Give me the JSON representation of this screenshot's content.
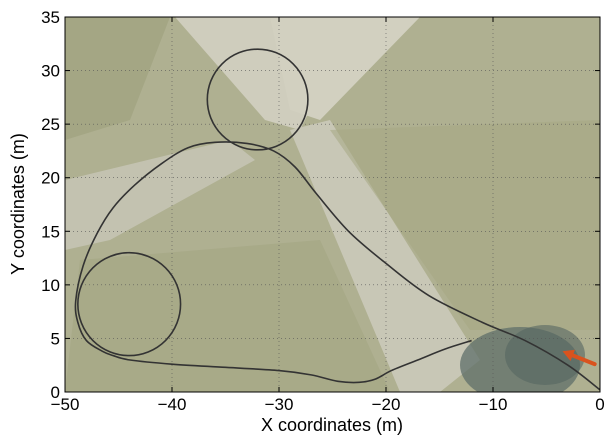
{
  "chart_data": {
    "type": "line",
    "title": "",
    "xlabel": "X coordinates (m)",
    "ylabel": "Y coordinates (m)",
    "xlim": [
      -50,
      0
    ],
    "ylim": [
      0,
      35
    ],
    "xticks": [
      -50,
      -40,
      -30,
      -20,
      -10,
      0
    ],
    "yticks": [
      0,
      5,
      10,
      15,
      20,
      25,
      30,
      35
    ],
    "xtick_labels": [
      "−50",
      "−40",
      "−30",
      "−20",
      "−10",
      "0"
    ],
    "ytick_labels": [
      "0",
      "5",
      "10",
      "15",
      "20",
      "25",
      "30",
      "35"
    ],
    "grid": true,
    "background": "aerial photograph (green field with pale footpaths)",
    "line_color": "#333333",
    "arrow_color": "#d9531e",
    "series": [
      {
        "name": "",
        "x": [
          0,
          -3,
          -7,
          -11,
          -16,
          -20,
          -23.5,
          -26.5,
          -28.5,
          -30.5,
          -33,
          -36,
          -38.5,
          -41,
          -43.5,
          -45.5,
          -47,
          -48.3,
          -49,
          -48.8,
          -48,
          -46.5,
          -45.5,
          -44,
          -40,
          -35,
          -30,
          -27,
          -24.5,
          -22.5,
          -21,
          -19.5,
          -17,
          -14.5,
          -12
        ],
        "y": [
          0.2,
          2.5,
          4.8,
          6.5,
          9.0,
          12.0,
          15.0,
          18.5,
          21.0,
          22.5,
          23.2,
          23.3,
          22.8,
          21.3,
          19.3,
          17.2,
          14.8,
          11.8,
          8.5,
          6.5,
          4.8,
          3.8,
          3.4,
          3.0,
          2.6,
          2.3,
          2.0,
          1.6,
          1.0,
          0.9,
          1.2,
          2.0,
          3.0,
          4.0,
          4.8
        ]
      }
    ],
    "circles": [
      {
        "cx": -32,
        "cy": 27.3,
        "r": 4.7
      },
      {
        "cx": -44,
        "cy": 8.2,
        "r": 4.8
      }
    ],
    "arrow": {
      "from": [
        -0.5,
        2.6
      ],
      "to": [
        -3.5,
        3.8
      ]
    }
  }
}
